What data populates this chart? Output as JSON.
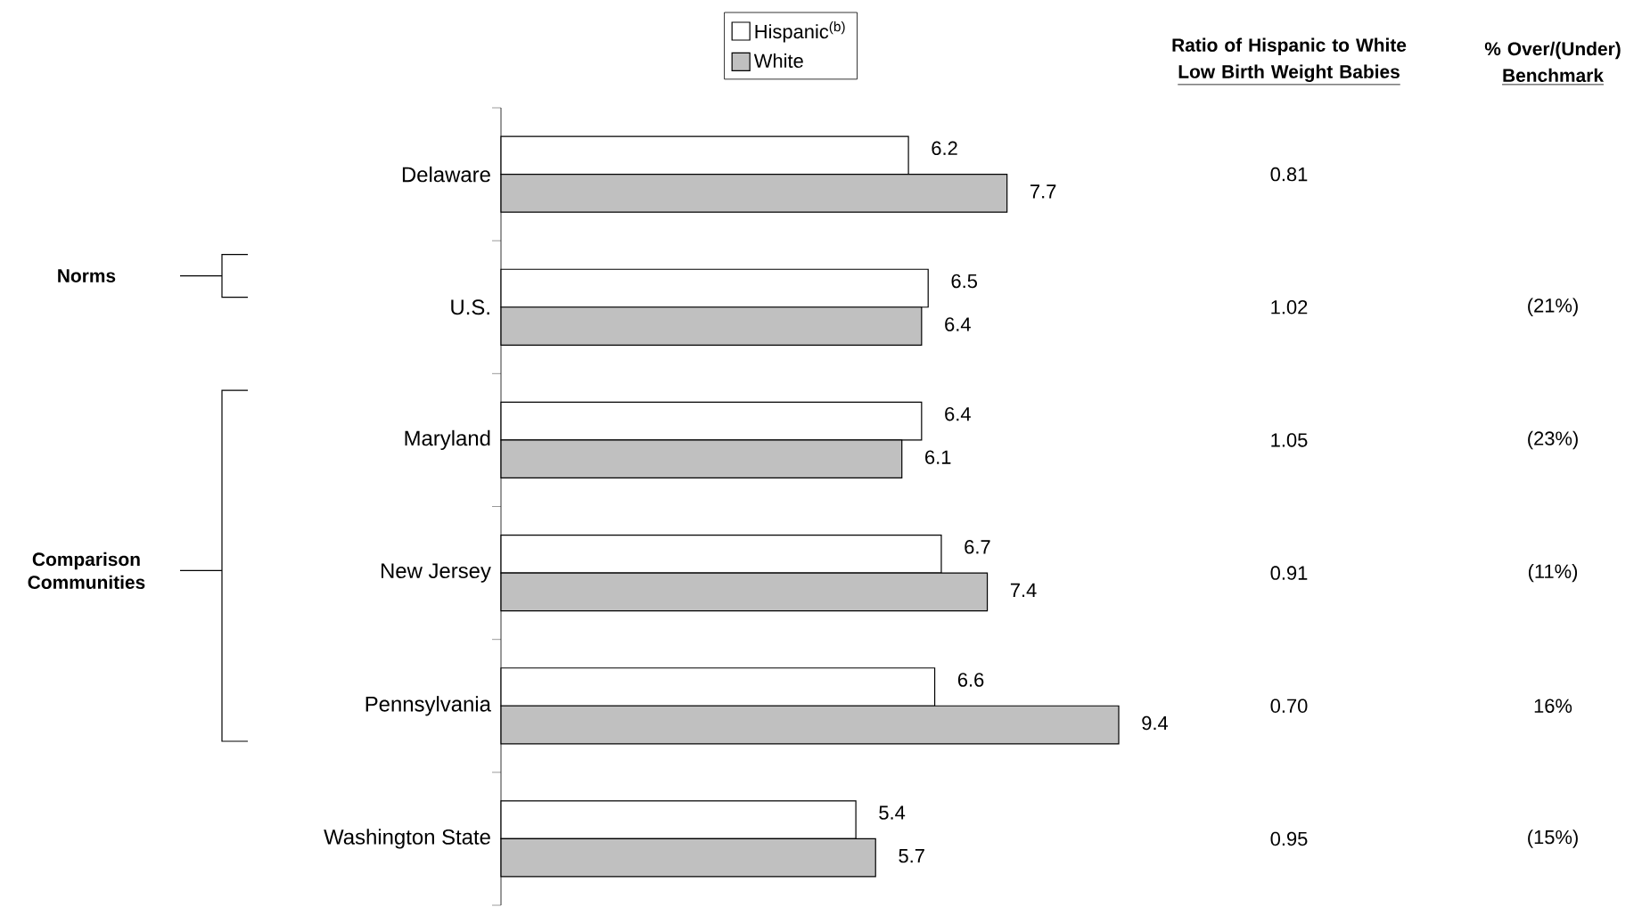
{
  "chart_data": [
    {
      "type": "bar",
      "orientation": "horizontal",
      "categories": [
        "Delaware",
        "U.S.",
        "Maryland",
        "New Jersey",
        "Pennsylvania",
        "Washington State"
      ],
      "series": [
        {
          "name": "Hispanic$^{(b)}$",
          "color": "#ffffff",
          "values": [
            6.2,
            6.5,
            6.4,
            6.7,
            6.6,
            5.4
          ]
        },
        {
          "name": "White",
          "color": "#c0c0c0",
          "values": [
            7.7,
            6.4,
            6.1,
            7.4,
            9.4,
            5.7
          ]
        }
      ],
      "data_labels": true,
      "legend": "top",
      "annotations": [
        "Norms",
        "Comparison Communities"
      ]
    },
    {
      "type": "other",
      "title": "Ratio of Hispanic to White",
      "subtitle": "Low Birth Weight Babies",
      "value_labels": [
        "0.81",
        "1.02",
        "1.05",
        "0.91",
        "0.70",
        "0.95"
      ]
    },
    {
      "type": "other",
      "title": "% Over/(Under)",
      "subtitle": "Benchmark",
      "value_labels": [
        null,
        "(21%)",
        "(23%)",
        "(11%)",
        "16%",
        "(15%)"
      ]
    }
  ]
}
